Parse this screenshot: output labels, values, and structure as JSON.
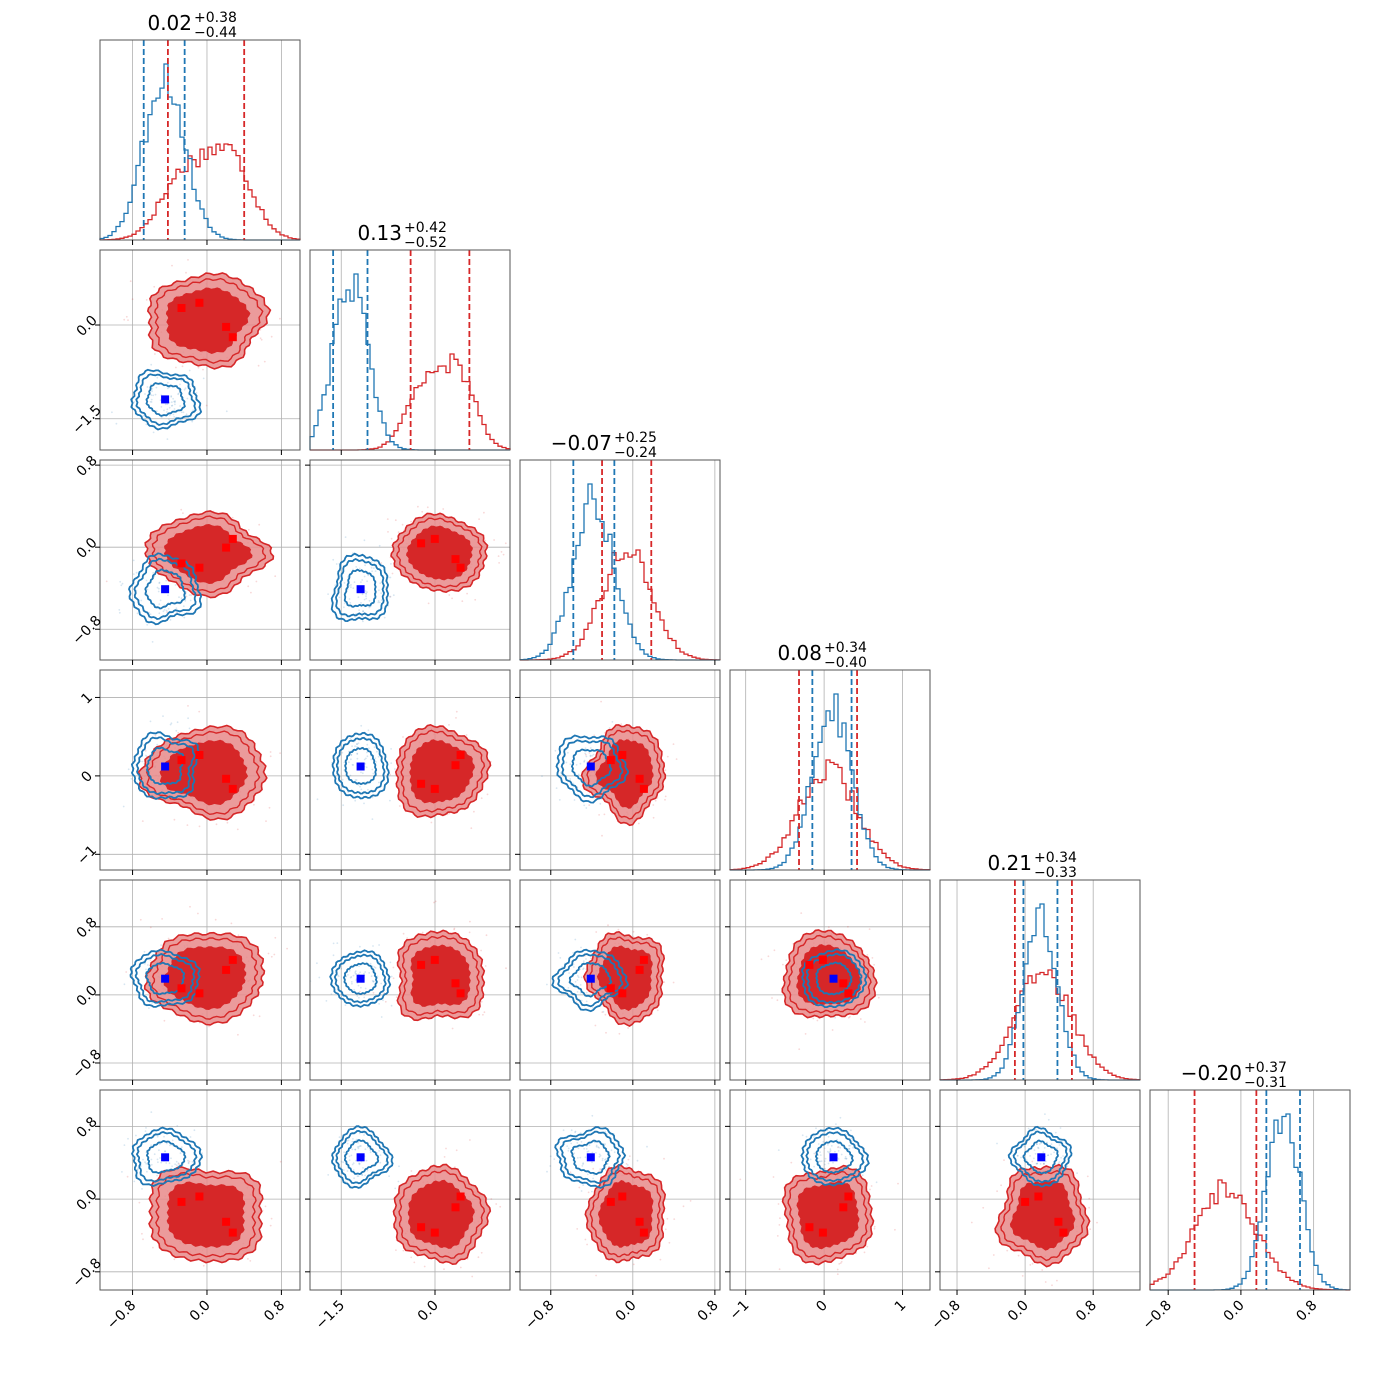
{
  "chart_data": {
    "type": "corner",
    "n_params": 6,
    "colors": {
      "series_a": "#1f77b4",
      "series_b": "#d62728",
      "series_b_fill": "#e8898a",
      "marker_a": "#0000ff",
      "marker_b": "#ff0000"
    },
    "grid": true,
    "ranges": [
      [
        -1.15,
        1.0
      ],
      [
        -2.0,
        1.2
      ],
      [
        -1.1,
        0.85
      ],
      [
        -1.2,
        1.35
      ],
      [
        -1.0,
        1.35
      ],
      [
        -1.0,
        1.2
      ]
    ],
    "ticks": [
      {
        "values": [
          -0.8,
          0.0,
          0.8
        ],
        "labels": [
          "−0.8",
          "0.0",
          "0.8"
        ]
      },
      {
        "values": [
          -1.5,
          0.0
        ],
        "labels": [
          "−1.5",
          "0.0"
        ]
      },
      {
        "values": [
          -0.8,
          0.0,
          0.8
        ],
        "labels": [
          "−0.8",
          "0.0",
          "0.8"
        ]
      },
      {
        "values": [
          -1,
          0,
          1
        ],
        "labels": [
          "−1",
          "0",
          "1"
        ]
      },
      {
        "values": [
          -0.8,
          0.0,
          0.8
        ],
        "labels": [
          "−0.8",
          "0.0",
          "0.8"
        ]
      },
      {
        "values": [
          -0.8,
          0.0,
          0.8
        ],
        "labels": [
          "−0.8",
          "0.0",
          "0.8"
        ]
      }
    ],
    "titles": [
      {
        "value": "0.02",
        "plus": "+0.38",
        "minus": "−0.44"
      },
      {
        "value": "0.13",
        "plus": "+0.42",
        "minus": "−0.52"
      },
      {
        "value": "−0.07",
        "plus": "+0.25",
        "minus": "−0.24"
      },
      {
        "value": "0.08",
        "plus": "+0.34",
        "minus": "−0.40"
      },
      {
        "value": "0.21",
        "plus": "+0.34",
        "minus": "−0.33"
      },
      {
        "value": "−0.20",
        "plus": "+0.37",
        "minus": "−0.31"
      }
    ],
    "quantiles_a": [
      [
        -0.68,
        -0.24
      ],
      [
        -1.63,
        -1.08
      ],
      [
        -0.58,
        -0.18
      ],
      [
        -0.15,
        0.35
      ],
      [
        -0.02,
        0.38
      ],
      [
        0.28,
        0.65
      ]
    ],
    "quantiles_b": [
      [
        -0.42,
        0.4
      ],
      [
        -0.39,
        0.55
      ],
      [
        -0.3,
        0.18
      ],
      [
        -0.32,
        0.42
      ],
      [
        -0.12,
        0.55
      ],
      [
        -0.51,
        0.17
      ]
    ],
    "markers_a": [
      -0.45,
      -1.19,
      -0.41,
      0.12,
      0.19,
      0.46
    ],
    "markers_b": [
      [
        -0.33,
        -0.19,
        0.26,
        0.34
      ],
      [
        0.45,
        0.5,
        -0.1,
        -0.38
      ],
      [
        -0.33,
        0.1,
        -0.04,
        -0.21,
        -0.19
      ],
      [
        0.42,
        0.12,
        0.08,
        0.12,
        -0.33
      ],
      [
        0.58,
        0.13,
        0.31,
        -0.11,
        -0.13,
        0.52
      ],
      [
        0.22,
        -0.23,
        -0.16,
        -0.43,
        -0.4,
        0.22,
        -0.25,
        -0.16
      ]
    ]
  }
}
